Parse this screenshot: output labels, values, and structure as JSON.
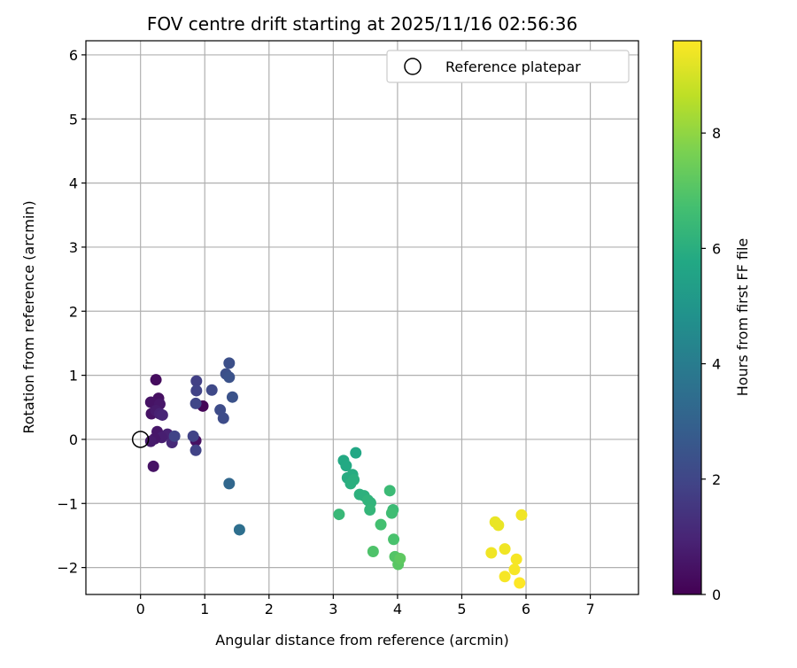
{
  "chart_data": {
    "type": "scatter",
    "title": "FOV centre drift starting at 2025/11/16 02:56:36",
    "xlabel": "Angular distance from reference (arcmin)",
    "ylabel": "Rotation from reference (arcmin)",
    "xlim": [
      -0.85,
      7.75
    ],
    "ylim": [
      -2.42,
      6.22
    ],
    "xticks": [
      0,
      1,
      2,
      3,
      4,
      5,
      6,
      7
    ],
    "yticks": [
      -2,
      -1,
      0,
      1,
      2,
      3,
      4,
      5,
      6
    ],
    "grid": true,
    "legend": {
      "placement": "top-right",
      "entries": [
        "Reference platepar"
      ]
    },
    "reference_point": {
      "x": 0,
      "y": 0,
      "label": "Reference platepar"
    },
    "colorbar": {
      "label": "Hours from first FF file",
      "colormap": "viridis",
      "range": [
        0,
        9.6
      ],
      "ticks": [
        0,
        2,
        4,
        6,
        8
      ]
    },
    "points": [
      {
        "x": 0.24,
        "y": 0.93,
        "h": 0.3
      },
      {
        "x": 0.28,
        "y": 0.64,
        "h": 0.4
      },
      {
        "x": 0.16,
        "y": 0.58,
        "h": 0.5
      },
      {
        "x": 0.3,
        "y": 0.55,
        "h": 0.6
      },
      {
        "x": 0.17,
        "y": 0.4,
        "h": 0.5
      },
      {
        "x": 0.24,
        "y": 0.45,
        "h": 0.7
      },
      {
        "x": 0.3,
        "y": 0.4,
        "h": 0.9
      },
      {
        "x": 0.34,
        "y": 0.38,
        "h": 1.0
      },
      {
        "x": 0.26,
        "y": 0.12,
        "h": 0.6
      },
      {
        "x": 0.42,
        "y": 0.08,
        "h": 0.9
      },
      {
        "x": 0.33,
        "y": 0.03,
        "h": 0.8
      },
      {
        "x": 0.22,
        "y": 0.01,
        "h": 0.6
      },
      {
        "x": 0.16,
        "y": -0.03,
        "h": 0.7
      },
      {
        "x": 0.49,
        "y": -0.05,
        "h": 1.1
      },
      {
        "x": 0.53,
        "y": 0.05,
        "h": 1.9
      },
      {
        "x": 0.2,
        "y": -0.42,
        "h": 0.5
      },
      {
        "x": 0.86,
        "y": -0.02,
        "h": 0.4
      },
      {
        "x": 0.97,
        "y": 0.52,
        "h": 0.1
      },
      {
        "x": 0.87,
        "y": 0.91,
        "h": 1.8
      },
      {
        "x": 0.87,
        "y": 0.76,
        "h": 1.9
      },
      {
        "x": 0.86,
        "y": 0.56,
        "h": 2.0
      },
      {
        "x": 0.82,
        "y": 0.05,
        "h": 1.9
      },
      {
        "x": 0.86,
        "y": -0.17,
        "h": 1.9
      },
      {
        "x": 1.11,
        "y": 0.77,
        "h": 2.1
      },
      {
        "x": 1.24,
        "y": 0.46,
        "h": 2.2
      },
      {
        "x": 1.29,
        "y": 0.33,
        "h": 2.2
      },
      {
        "x": 1.33,
        "y": 1.02,
        "h": 2.3
      },
      {
        "x": 1.38,
        "y": 1.19,
        "h": 2.3
      },
      {
        "x": 1.38,
        "y": 0.97,
        "h": 2.4
      },
      {
        "x": 1.43,
        "y": 0.66,
        "h": 2.4
      },
      {
        "x": 1.38,
        "y": -0.69,
        "h": 3.2
      },
      {
        "x": 1.54,
        "y": -1.41,
        "h": 3.5
      },
      {
        "x": 3.35,
        "y": -0.21,
        "h": 5.7
      },
      {
        "x": 3.16,
        "y": -0.33,
        "h": 5.8
      },
      {
        "x": 3.2,
        "y": -0.41,
        "h": 5.8
      },
      {
        "x": 3.3,
        "y": -0.55,
        "h": 5.9
      },
      {
        "x": 3.22,
        "y": -0.6,
        "h": 5.9
      },
      {
        "x": 3.32,
        "y": -0.63,
        "h": 6.0
      },
      {
        "x": 3.27,
        "y": -0.69,
        "h": 6.0
      },
      {
        "x": 3.41,
        "y": -0.86,
        "h": 6.1
      },
      {
        "x": 3.48,
        "y": -0.88,
        "h": 6.1
      },
      {
        "x": 3.54,
        "y": -0.95,
        "h": 6.2
      },
      {
        "x": 3.58,
        "y": -0.99,
        "h": 6.2
      },
      {
        "x": 3.57,
        "y": -1.1,
        "h": 6.3
      },
      {
        "x": 3.09,
        "y": -1.17,
        "h": 6.4
      },
      {
        "x": 3.88,
        "y": -0.8,
        "h": 6.5
      },
      {
        "x": 3.93,
        "y": -1.1,
        "h": 6.5
      },
      {
        "x": 3.91,
        "y": -1.15,
        "h": 6.6
      },
      {
        "x": 3.74,
        "y": -1.33,
        "h": 6.7
      },
      {
        "x": 3.94,
        "y": -1.56,
        "h": 6.8
      },
      {
        "x": 3.62,
        "y": -1.75,
        "h": 6.9
      },
      {
        "x": 3.96,
        "y": -1.83,
        "h": 7.0
      },
      {
        "x": 4.01,
        "y": -1.95,
        "h": 7.1
      },
      {
        "x": 4.04,
        "y": -1.86,
        "h": 7.2
      },
      {
        "x": 5.52,
        "y": -1.29,
        "h": 9.3
      },
      {
        "x": 5.57,
        "y": -1.34,
        "h": 9.3
      },
      {
        "x": 5.93,
        "y": -1.18,
        "h": 9.4
      },
      {
        "x": 5.46,
        "y": -1.77,
        "h": 9.4
      },
      {
        "x": 5.67,
        "y": -1.71,
        "h": 9.4
      },
      {
        "x": 5.85,
        "y": -1.87,
        "h": 9.5
      },
      {
        "x": 5.82,
        "y": -2.03,
        "h": 9.5
      },
      {
        "x": 5.67,
        "y": -2.14,
        "h": 9.5
      },
      {
        "x": 5.9,
        "y": -2.24,
        "h": 9.6
      }
    ]
  }
}
